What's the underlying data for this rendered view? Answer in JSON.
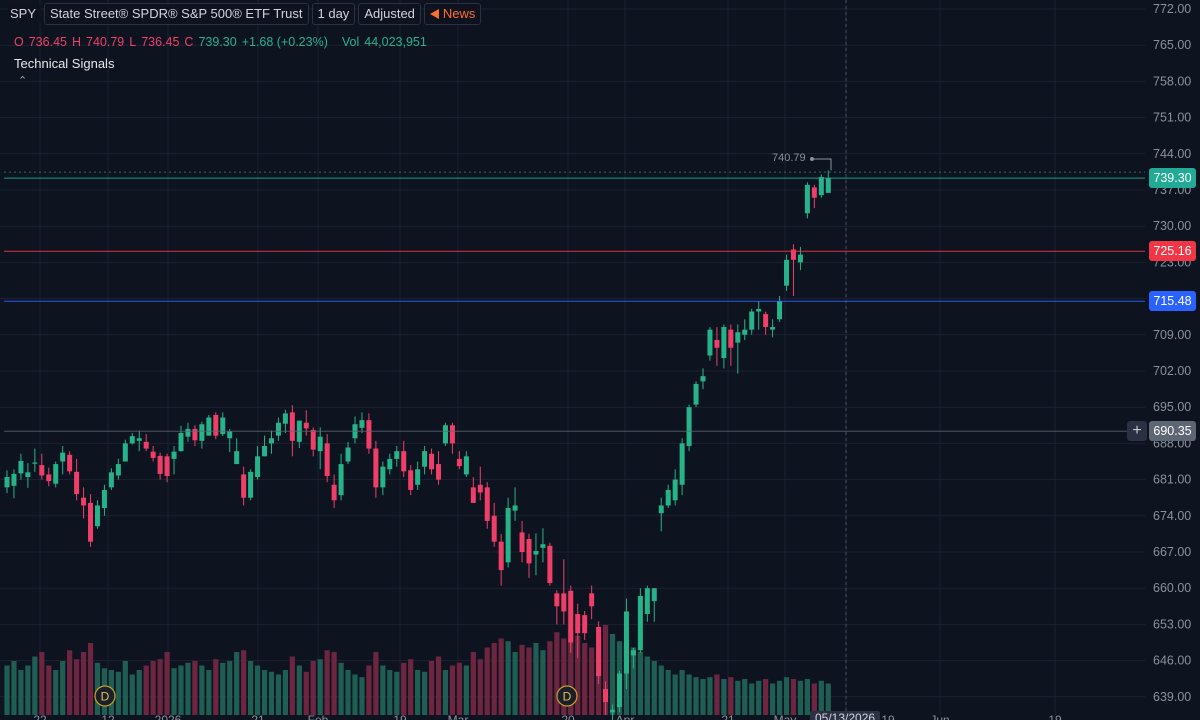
{
  "header": {
    "symbol": "SPY",
    "name": "State Street® SPDR® S&P 500® ETF Trust",
    "interval": "1 day",
    "adjustment": "Adjusted",
    "news_label": "News"
  },
  "ohlc": {
    "o_label": "O",
    "o": "736.45",
    "h_label": "H",
    "h": "740.79",
    "l_label": "L",
    "l": "736.45",
    "c_label": "C",
    "c": "739.30",
    "change": "+1.68 (+0.23%)",
    "vol_label": "Vol",
    "vol": "44,023,951"
  },
  "indicator": {
    "name": "Technical Signals",
    "collapse_icon": "chevron-up-icon"
  },
  "price_axis": {
    "ticks": [
      "772.00",
      "765.00",
      "758.00",
      "751.00",
      "744.00",
      "737.00",
      "730.00",
      "723.00",
      "716.00",
      "709.00",
      "702.00",
      "695.00",
      "688.00",
      "681.00",
      "674.00",
      "667.00",
      "660.00",
      "653.00",
      "646.00",
      "639.00"
    ]
  },
  "levels": [
    {
      "value": 739.3,
      "label": "739.30",
      "color": "#22ab94",
      "kind": "last-price"
    },
    {
      "value": 725.16,
      "label": "725.16",
      "color": "#f23645",
      "kind": "resistance"
    },
    {
      "value": 715.48,
      "label": "715.48",
      "color": "#2962ff",
      "kind": "support"
    },
    {
      "value": 690.35,
      "label": "690.35",
      "color": "#5d6673",
      "kind": "crosshair"
    }
  ],
  "peak_label": "740.79",
  "crosshair_date": "05/13/2026",
  "colors": {
    "up": "#26b38a",
    "down": "#ef3f69",
    "background": "#0e1320",
    "grid": "#1c2230"
  },
  "dividends": {
    "marker_label": "D"
  },
  "chart_data": {
    "type": "candlestick",
    "ylim": [
      637,
      773
    ],
    "candles": [
      {
        "o": 679.5,
        "h": 682.8,
        "l": 678.4,
        "c": 681.5
      },
      {
        "o": 679.8,
        "h": 683.0,
        "l": 677.4,
        "c": 682.1
      },
      {
        "o": 682.2,
        "h": 686.0,
        "l": 681.0,
        "c": 684.6
      },
      {
        "o": 681.5,
        "h": 684.2,
        "l": 679.4,
        "c": 682.4
      },
      {
        "o": 684.2,
        "h": 687.0,
        "l": 682.5,
        "c": 684.3
      },
      {
        "o": 683.8,
        "h": 686.0,
        "l": 681.0,
        "c": 681.8
      },
      {
        "o": 682.0,
        "h": 683.3,
        "l": 679.7,
        "c": 680.7
      },
      {
        "o": 680.2,
        "h": 684.5,
        "l": 679.5,
        "c": 684.0
      },
      {
        "o": 684.5,
        "h": 687.5,
        "l": 682.0,
        "c": 686.2
      },
      {
        "o": 685.8,
        "h": 686.5,
        "l": 682.0,
        "c": 682.6
      },
      {
        "o": 682.5,
        "h": 685.0,
        "l": 677.0,
        "c": 678.2
      },
      {
        "o": 677.5,
        "h": 679.5,
        "l": 673.5,
        "c": 676.0
      },
      {
        "o": 676.5,
        "h": 678.2,
        "l": 668.0,
        "c": 669.0
      },
      {
        "o": 672.0,
        "h": 677.0,
        "l": 671.5,
        "c": 676.0
      },
      {
        "o": 675.5,
        "h": 680.0,
        "l": 674.0,
        "c": 679.0
      },
      {
        "o": 679.5,
        "h": 683.2,
        "l": 679.0,
        "c": 682.4
      },
      {
        "o": 681.8,
        "h": 685.0,
        "l": 681.0,
        "c": 684.0
      },
      {
        "o": 684.5,
        "h": 688.7,
        "l": 684.5,
        "c": 688.0
      },
      {
        "o": 688.0,
        "h": 690.0,
        "l": 687.8,
        "c": 689.4
      },
      {
        "o": 688.5,
        "h": 690.5,
        "l": 686.5,
        "c": 689.0
      },
      {
        "o": 688.3,
        "h": 689.8,
        "l": 686.5,
        "c": 687.0
      },
      {
        "o": 686.4,
        "h": 687.5,
        "l": 684.5,
        "c": 685.2
      },
      {
        "o": 685.6,
        "h": 686.2,
        "l": 681.0,
        "c": 682.1
      },
      {
        "o": 685.5,
        "h": 686.0,
        "l": 680.5,
        "c": 681.7
      },
      {
        "o": 685.0,
        "h": 687.5,
        "l": 682.0,
        "c": 686.4
      },
      {
        "o": 686.5,
        "h": 691.4,
        "l": 686.4,
        "c": 690.0
      },
      {
        "o": 689.3,
        "h": 692.0,
        "l": 688.3,
        "c": 690.8
      },
      {
        "o": 690.8,
        "h": 691.5,
        "l": 687.5,
        "c": 688.6
      },
      {
        "o": 688.5,
        "h": 692.2,
        "l": 687.0,
        "c": 691.7
      },
      {
        "o": 689.5,
        "h": 693.5,
        "l": 689.5,
        "c": 693.0
      },
      {
        "o": 693.5,
        "h": 694.0,
        "l": 688.8,
        "c": 689.5
      },
      {
        "o": 689.8,
        "h": 694.0,
        "l": 689.4,
        "c": 693.0
      },
      {
        "o": 689.0,
        "h": 690.8,
        "l": 686.3,
        "c": 690.3
      },
      {
        "o": 684.0,
        "h": 689.0,
        "l": 684.0,
        "c": 686.5
      },
      {
        "o": 682.0,
        "h": 683.5,
        "l": 676.0,
        "c": 677.5
      },
      {
        "o": 677.5,
        "h": 683.0,
        "l": 677.0,
        "c": 682.5
      },
      {
        "o": 681.5,
        "h": 687.5,
        "l": 681.0,
        "c": 685.5
      },
      {
        "o": 685.5,
        "h": 689.5,
        "l": 685.5,
        "c": 687.5
      },
      {
        "o": 688.0,
        "h": 690.5,
        "l": 686.0,
        "c": 689.0
      },
      {
        "o": 689.5,
        "h": 693.0,
        "l": 688.5,
        "c": 692.0
      },
      {
        "o": 691.8,
        "h": 694.5,
        "l": 690.0,
        "c": 693.8
      },
      {
        "o": 694.0,
        "h": 695.4,
        "l": 685.5,
        "c": 688.5
      },
      {
        "o": 688.3,
        "h": 692.4,
        "l": 687.1,
        "c": 692.4
      },
      {
        "o": 692.0,
        "h": 694.4,
        "l": 689.5,
        "c": 690.9
      },
      {
        "o": 690.6,
        "h": 691.1,
        "l": 685.5,
        "c": 686.8
      },
      {
        "o": 686.5,
        "h": 691.1,
        "l": 683.0,
        "c": 689.3
      },
      {
        "o": 688.0,
        "h": 689.8,
        "l": 680.5,
        "c": 681.7
      },
      {
        "o": 680.0,
        "h": 682.0,
        "l": 675.5,
        "c": 677.0
      },
      {
        "o": 678.0,
        "h": 686.0,
        "l": 677.0,
        "c": 684.0
      },
      {
        "o": 684.5,
        "h": 688.3,
        "l": 684.0,
        "c": 687.2
      },
      {
        "o": 689.0,
        "h": 693.2,
        "l": 688.0,
        "c": 691.7
      },
      {
        "o": 691.0,
        "h": 694.0,
        "l": 690.0,
        "c": 692.5
      },
      {
        "o": 692.5,
        "h": 693.8,
        "l": 686.0,
        "c": 687.0
      },
      {
        "o": 687.0,
        "h": 688.5,
        "l": 677.5,
        "c": 679.5
      },
      {
        "o": 679.5,
        "h": 684.5,
        "l": 678.0,
        "c": 683.5
      },
      {
        "o": 683.0,
        "h": 686.0,
        "l": 682.0,
        "c": 685.0
      },
      {
        "o": 685.0,
        "h": 687.5,
        "l": 683.5,
        "c": 686.5
      },
      {
        "o": 686.5,
        "h": 688.5,
        "l": 681.5,
        "c": 682.6
      },
      {
        "o": 682.8,
        "h": 683.8,
        "l": 678.0,
        "c": 679.0
      },
      {
        "o": 680.0,
        "h": 684.5,
        "l": 679.0,
        "c": 683.0
      },
      {
        "o": 683.5,
        "h": 687.5,
        "l": 682.0,
        "c": 686.5
      },
      {
        "o": 686.0,
        "h": 687.0,
        "l": 682.0,
        "c": 683.0
      },
      {
        "o": 684.0,
        "h": 686.5,
        "l": 680.0,
        "c": 681.0
      },
      {
        "o": 688.0,
        "h": 692.0,
        "l": 687.5,
        "c": 691.5
      },
      {
        "o": 691.5,
        "h": 692.0,
        "l": 686.0,
        "c": 688.0
      },
      {
        "o": 685.0,
        "h": 686.5,
        "l": 683.0,
        "c": 683.6
      },
      {
        "o": 682.0,
        "h": 686.5,
        "l": 681.5,
        "c": 685.5
      },
      {
        "o": 679.5,
        "h": 681.5,
        "l": 676.5,
        "c": 676.5
      },
      {
        "o": 680.0,
        "h": 683.5,
        "l": 677.0,
        "c": 678.5
      },
      {
        "o": 679.5,
        "h": 680.5,
        "l": 671.5,
        "c": 673.0
      },
      {
        "o": 674.0,
        "h": 676.5,
        "l": 668.0,
        "c": 669.0
      },
      {
        "o": 669.0,
        "h": 670.5,
        "l": 660.5,
        "c": 663.5
      },
      {
        "o": 665.0,
        "h": 677.5,
        "l": 664.0,
        "c": 675.5
      },
      {
        "o": 675.0,
        "h": 679.5,
        "l": 673.0,
        "c": 676.0
      },
      {
        "o": 670.8,
        "h": 673.0,
        "l": 665.0,
        "c": 667.0
      },
      {
        "o": 669.5,
        "h": 670.5,
        "l": 662.0,
        "c": 664.8
      },
      {
        "o": 666.5,
        "h": 670.6,
        "l": 662.5,
        "c": 667.2
      },
      {
        "o": 667.8,
        "h": 671.6,
        "l": 665.0,
        "c": 668.5
      },
      {
        "o": 668.2,
        "h": 668.8,
        "l": 660.5,
        "c": 661.0
      },
      {
        "o": 659.0,
        "h": 659.6,
        "l": 653.0,
        "c": 656.5
      },
      {
        "o": 659.0,
        "h": 665.6,
        "l": 653.0,
        "c": 655.5
      },
      {
        "o": 659.5,
        "h": 660.5,
        "l": 647.5,
        "c": 649.5
      },
      {
        "o": 655.0,
        "h": 657.0,
        "l": 646.5,
        "c": 651.3
      },
      {
        "o": 654.8,
        "h": 655.6,
        "l": 650.0,
        "c": 651.3
      },
      {
        "o": 659.0,
        "h": 660.5,
        "l": 654.0,
        "c": 656.5
      },
      {
        "o": 652.5,
        "h": 653.6,
        "l": 641.5,
        "c": 643.0
      },
      {
        "o": 640.5,
        "h": 642.0,
        "l": 635.5,
        "c": 638.0
      },
      {
        "o": 636.0,
        "h": 637.5,
        "l": 634.0,
        "c": 636.5
      },
      {
        "o": 637.0,
        "h": 644.0,
        "l": 636.0,
        "c": 643.5
      },
      {
        "o": 643.5,
        "h": 658.0,
        "l": 640.5,
        "c": 655.5
      },
      {
        "o": 647.0,
        "h": 648.5,
        "l": 644.5,
        "c": 648.0
      },
      {
        "o": 648.0,
        "h": 660.0,
        "l": 647.5,
        "c": 658.5
      },
      {
        "o": 655.0,
        "h": 660.5,
        "l": 653.5,
        "c": 660.0
      },
      {
        "o": 657.5,
        "h": 660.0,
        "l": 653.5,
        "c": 660.0
      },
      {
        "o": 674.5,
        "h": 677.5,
        "l": 671.0,
        "c": 676.0
      },
      {
        "o": 676.0,
        "h": 680.0,
        "l": 675.5,
        "c": 679.0
      },
      {
        "o": 677.0,
        "h": 683.0,
        "l": 676.0,
        "c": 681.0
      },
      {
        "o": 680.0,
        "h": 689.0,
        "l": 678.0,
        "c": 688.0
      },
      {
        "o": 687.5,
        "h": 695.5,
        "l": 686.5,
        "c": 695.0
      },
      {
        "o": 695.5,
        "h": 700.0,
        "l": 695.0,
        "c": 699.5
      },
      {
        "o": 700.0,
        "h": 702.5,
        "l": 698.5,
        "c": 701.0
      },
      {
        "o": 705.0,
        "h": 710.5,
        "l": 704.0,
        "c": 710.0
      },
      {
        "o": 708.0,
        "h": 710.5,
        "l": 703.0,
        "c": 706.5
      },
      {
        "o": 704.5,
        "h": 711.0,
        "l": 702.5,
        "c": 710.5
      },
      {
        "o": 710.0,
        "h": 711.0,
        "l": 703.0,
        "c": 706.5
      },
      {
        "o": 707.5,
        "h": 711.0,
        "l": 701.5,
        "c": 709.5
      },
      {
        "o": 709.0,
        "h": 712.0,
        "l": 708.0,
        "c": 710.0
      },
      {
        "o": 710.0,
        "h": 714.0,
        "l": 709.0,
        "c": 713.5
      },
      {
        "o": 713.5,
        "h": 715.5,
        "l": 710.0,
        "c": 714.0
      },
      {
        "o": 713.0,
        "h": 713.5,
        "l": 709.0,
        "c": 710.5
      },
      {
        "o": 710.0,
        "h": 712.0,
        "l": 708.5,
        "c": 710.5
      },
      {
        "o": 712.0,
        "h": 716.5,
        "l": 711.5,
        "c": 715.5
      },
      {
        "o": 718.5,
        "h": 724.5,
        "l": 717.5,
        "c": 723.5
      },
      {
        "o": 725.5,
        "h": 726.5,
        "l": 716.5,
        "c": 723.5
      },
      {
        "o": 723.0,
        "h": 726.0,
        "l": 721.5,
        "c": 724.5
      },
      {
        "o": 732.5,
        "h": 738.5,
        "l": 731.5,
        "c": 738.0
      },
      {
        "o": 737.5,
        "h": 738.0,
        "l": 733.5,
        "c": 735.5
      },
      {
        "o": 736.0,
        "h": 740.0,
        "l": 735.5,
        "c": 739.5
      },
      {
        "o": 736.45,
        "h": 740.79,
        "l": 736.45,
        "c": 739.3
      }
    ],
    "volume": [
      0.55,
      0.6,
      0.5,
      0.55,
      0.65,
      0.7,
      0.55,
      0.5,
      0.6,
      0.72,
      0.62,
      0.7,
      0.8,
      0.58,
      0.52,
      0.5,
      0.48,
      0.6,
      0.45,
      0.5,
      0.55,
      0.6,
      0.62,
      0.7,
      0.52,
      0.55,
      0.58,
      0.6,
      0.55,
      0.5,
      0.62,
      0.58,
      0.6,
      0.7,
      0.72,
      0.6,
      0.55,
      0.5,
      0.48,
      0.45,
      0.5,
      0.65,
      0.55,
      0.48,
      0.6,
      0.62,
      0.72,
      0.7,
      0.58,
      0.5,
      0.45,
      0.42,
      0.55,
      0.7,
      0.55,
      0.5,
      0.48,
      0.58,
      0.62,
      0.5,
      0.48,
      0.6,
      0.65,
      0.5,
      0.55,
      0.58,
      0.55,
      0.7,
      0.62,
      0.75,
      0.8,
      0.85,
      0.82,
      0.7,
      0.78,
      0.75,
      0.8,
      0.72,
      0.82,
      0.92,
      0.85,
      0.95,
      0.88,
      0.8,
      0.75,
      0.9,
      1.0,
      0.9,
      0.82,
      0.8,
      0.75,
      0.7,
      0.65,
      0.6,
      0.55,
      0.5,
      0.45,
      0.5,
      0.45,
      0.42,
      0.4,
      0.42,
      0.45,
      0.4,
      0.42,
      0.38,
      0.4,
      0.35,
      0.38,
      0.4,
      0.35,
      0.38,
      0.42,
      0.4,
      0.38,
      0.4,
      0.35,
      0.38,
      0.35,
      0.32
    ],
    "x_axis_labels": [
      "22",
      "12",
      "2026",
      "21",
      "Feb",
      "19",
      "Mar",
      "20",
      "Apr",
      "21",
      "May",
      "05/13/2026",
      "19",
      "Jun",
      "19"
    ]
  }
}
